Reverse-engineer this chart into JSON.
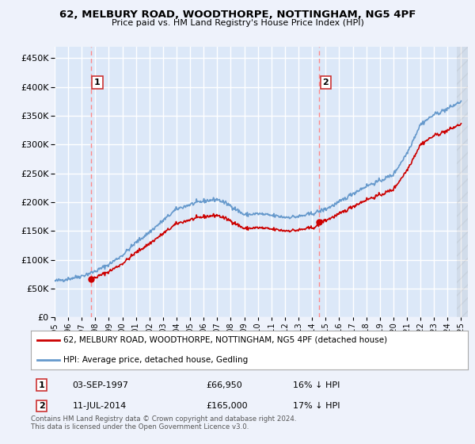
{
  "title": "62, MELBURY ROAD, WOODTHORPE, NOTTINGHAM, NG5 4PF",
  "subtitle": "Price paid vs. HM Land Registry's House Price Index (HPI)",
  "background_color": "#eef2fb",
  "plot_bg_color": "#dce8f8",
  "grid_color": "#ffffff",
  "ylim": [
    0,
    470000
  ],
  "yticks": [
    0,
    50000,
    100000,
    150000,
    200000,
    250000,
    300000,
    350000,
    400000,
    450000
  ],
  "year_start": 1995,
  "year_end": 2025,
  "sale1_year": 1997.67,
  "sale1_price": 66950,
  "sale2_year": 2014.52,
  "sale2_price": 165000,
  "legend_label_red": "62, MELBURY ROAD, WOODTHORPE, NOTTINGHAM, NG5 4PF (detached house)",
  "legend_label_blue": "HPI: Average price, detached house, Gedling",
  "annotation1_date": "03-SEP-1997",
  "annotation1_price": "£66,950",
  "annotation1_hpi": "16% ↓ HPI",
  "annotation2_date": "11-JUL-2014",
  "annotation2_price": "£165,000",
  "annotation2_hpi": "17% ↓ HPI",
  "footer": "Contains HM Land Registry data © Crown copyright and database right 2024.\nThis data is licensed under the Open Government Licence v3.0.",
  "red_line_color": "#cc0000",
  "blue_line_color": "#6699cc",
  "sale_marker_color": "#cc0000",
  "dashed_line_color": "#ff8888",
  "box_edge_color": "#cc3333"
}
